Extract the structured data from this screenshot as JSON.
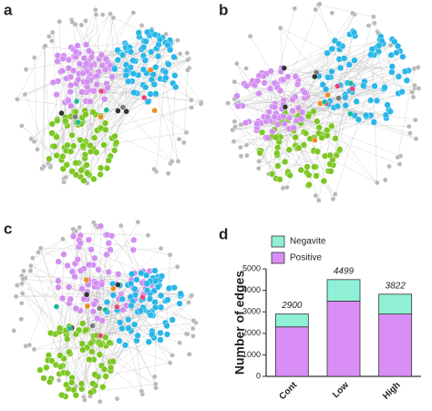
{
  "panel_labels": [
    "a",
    "b",
    "c",
    "d"
  ],
  "chart_data": {
    "type": "stacked_bar",
    "y_label": "Number of edges",
    "categories": [
      "Cont",
      "Low",
      "High"
    ],
    "series": [
      {
        "name": "Negavite",
        "color": "#8ff0d6",
        "values": [
          600,
          999,
          922
        ]
      },
      {
        "name": "Positive",
        "color": "#d98ef5",
        "values": [
          2300,
          3500,
          2900
        ]
      }
    ],
    "total_labels": [
      2900,
      4499,
      3822
    ],
    "ylim": [
      0,
      5000
    ],
    "yticks": [
      0,
      1000,
      2000,
      3000,
      4000,
      5000
    ],
    "legend": "top-left"
  }
}
